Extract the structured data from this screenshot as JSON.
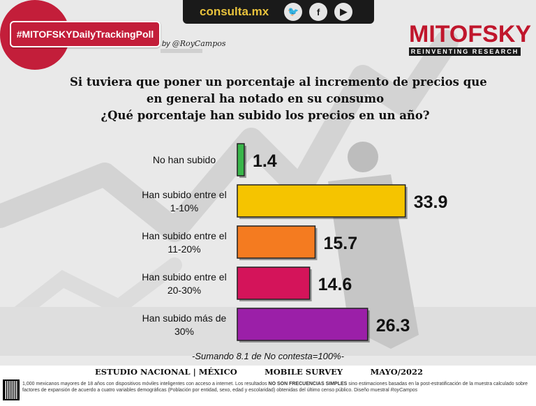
{
  "header": {
    "site": "consulta.mx",
    "social_icons": [
      "twitter-icon",
      "facebook-icon",
      "youtube-icon"
    ],
    "badge": "#MITOFSKYDailyTrackingPoll",
    "byline_prefix": "by",
    "byline_name": "@RoyCampos"
  },
  "logo": {
    "name": "MITOFSKY",
    "tagline": "REINVENTING RESEARCH",
    "color": "#c0162c"
  },
  "question": {
    "line1": "Si tuviera que poner un porcentaje al incremento de precios que",
    "line2": "en general ha notado en su consumo",
    "line3": "¿Qué porcentaje han subido los precios en un año?"
  },
  "chart_data": {
    "type": "bar",
    "orientation": "horizontal",
    "categories": [
      [
        "No han subido"
      ],
      [
        "Han subido entre el",
        "1-10%"
      ],
      [
        "Han subido entre el",
        "11-20%"
      ],
      [
        "Han subido entre el",
        "20-30%"
      ],
      [
        "Han subido más de",
        "30%"
      ]
    ],
    "values": [
      1.4,
      33.9,
      15.7,
      14.6,
      26.3
    ],
    "value_labels": [
      "1.4",
      "33.9",
      "15.7",
      "14.6",
      "26.3"
    ],
    "colors": [
      "#39b54a",
      "#f5c400",
      "#f47b20",
      "#d4145a",
      "#9b1fa8"
    ]
  },
  "note": "-Sumando 8.1 de No contesta=100%-",
  "footer": {
    "study": "ESTUDIO NACIONAL",
    "sep1": "|",
    "country": "MÉXICO",
    "survey": "MOBILE SURVEY",
    "date": "MAYO/2022",
    "methodology_part1": "1,000 mexicanos mayores de 18 años con dispositivos móviles inteligentes con acceso a internet. Los resultados ",
    "methodology_bold": "NO SON FRECUENCIAS SIMPLES",
    "methodology_part2": " sino estimaciones basadas en la post-estratificación de la muestra calculado sobre factores de expansión de acuerdo a cuatro variables demográficas (Población por entidad, sexo, edad y escolaridad) obtenidas del último censo público. Diseño muestral ",
    "methodology_sign": "RoyCampos"
  }
}
